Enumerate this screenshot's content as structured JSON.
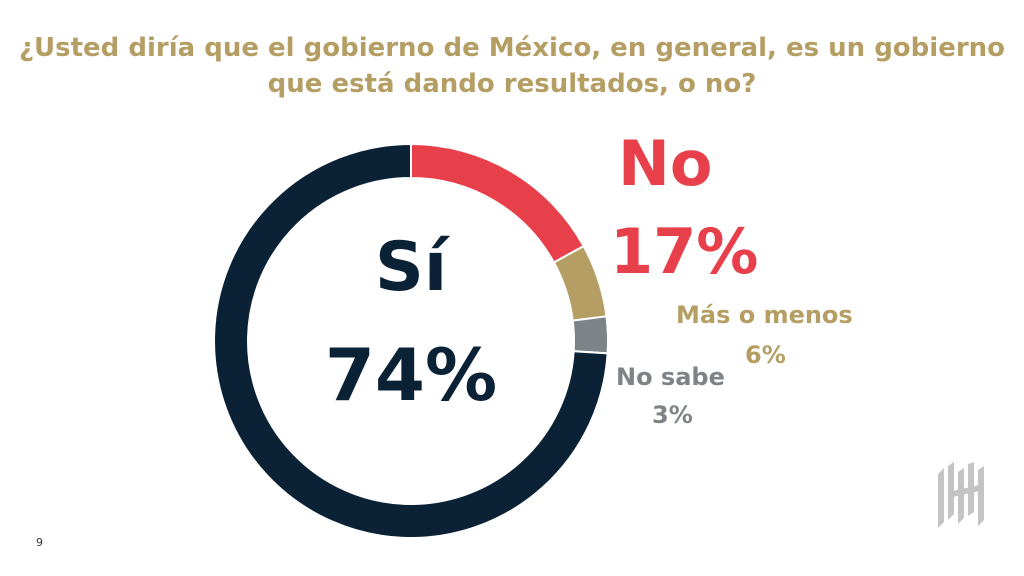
{
  "title": {
    "line1": "¿Usted diría que el gobierno de México, en general, es un gobierno",
    "line2": "que está dando resultados, o no?"
  },
  "chart_data": {
    "type": "pie",
    "title": "¿Usted diría que el gobierno de México, en general, es un gobierno que está dando resultados, o no?",
    "slices": [
      {
        "label": "No",
        "display": "17%",
        "value": 17,
        "color": "#e8404b"
      },
      {
        "label": "Más o menos",
        "display": "6%",
        "value": 6,
        "color": "#b59e63"
      },
      {
        "label": "No sabe",
        "display": "3%",
        "value": 3,
        "color": "#7e8388"
      },
      {
        "label": "Sí",
        "display": "74%",
        "value": 74,
        "color": "#0b2236"
      }
    ]
  },
  "page_number": "9",
  "logo_icon": "brand-logo-icon"
}
